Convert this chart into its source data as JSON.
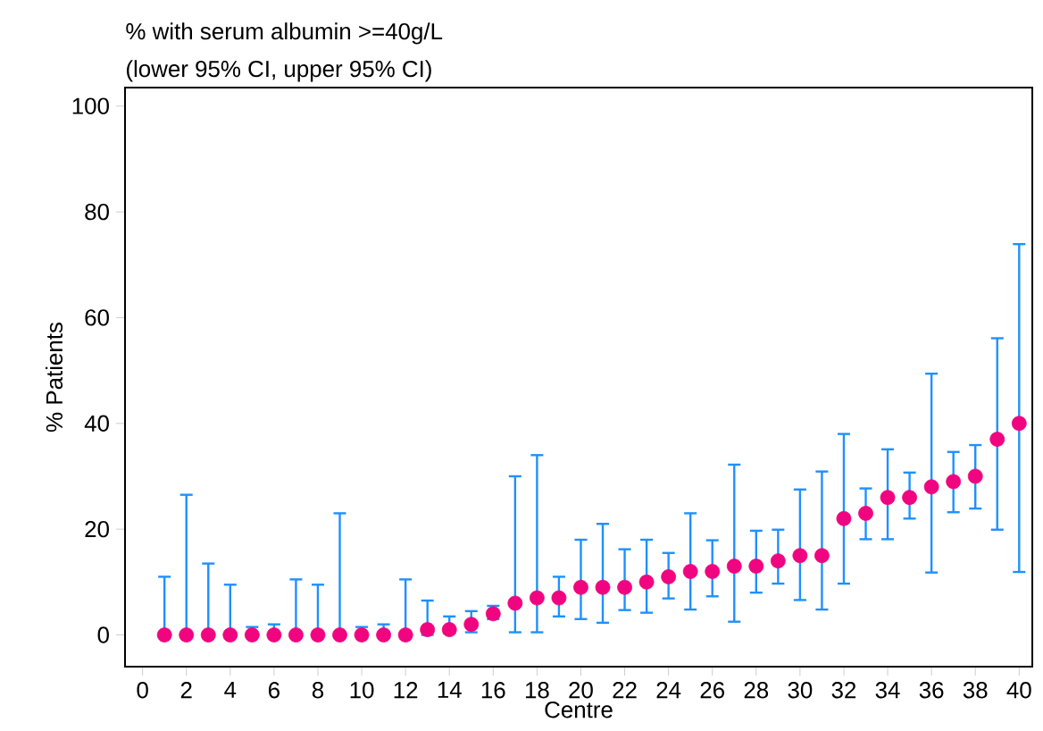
{
  "chart_data": {
    "type": "scatter",
    "title": "% with serum albumin >=40g/L",
    "subtitle": "(lower 95% CI, upper 95% CI)",
    "xlabel": "Centre",
    "ylabel": "% Patients",
    "x": [
      1,
      2,
      3,
      4,
      5,
      6,
      7,
      8,
      9,
      10,
      11,
      12,
      13,
      14,
      15,
      16,
      17,
      18,
      19,
      20,
      21,
      22,
      23,
      24,
      25,
      26,
      27,
      28,
      29,
      30,
      31,
      32,
      33,
      34,
      35,
      36,
      37,
      38,
      39,
      40
    ],
    "series": [
      {
        "color": "#f0047f",
        "values": [
          0,
          0,
          0,
          0,
          0,
          0,
          0,
          0,
          0,
          0,
          0,
          0,
          1,
          1,
          2,
          4,
          6,
          7,
          7,
          9,
          9,
          9,
          10,
          11,
          12,
          12,
          13,
          13,
          14,
          15,
          15,
          22,
          23,
          26,
          26,
          28,
          29,
          30,
          37,
          40
        ],
        "errors": [
          [
            0,
            11
          ],
          [
            0,
            26.5
          ],
          [
            0,
            13.5
          ],
          [
            0,
            9.5
          ],
          [
            0,
            1.5
          ],
          [
            0,
            2
          ],
          [
            0,
            10.5
          ],
          [
            0,
            9.5
          ],
          [
            0,
            23
          ],
          [
            0,
            1.5
          ],
          [
            0,
            2
          ],
          [
            0,
            10.5
          ],
          [
            0,
            6.5
          ],
          [
            0.3,
            3.5
          ],
          [
            0.5,
            4.5
          ],
          [
            3,
            5.5
          ],
          [
            0.5,
            30
          ],
          [
            0.5,
            34
          ],
          [
            3.5,
            11
          ],
          [
            3,
            18
          ],
          [
            2.3,
            21
          ],
          [
            4.7,
            16.2
          ],
          [
            4.2,
            18
          ],
          [
            6.9,
            15.5
          ],
          [
            4.8,
            23
          ],
          [
            7.3,
            17.9
          ],
          [
            2.5,
            32.2
          ],
          [
            8,
            19.7
          ],
          [
            9.7,
            19.9
          ],
          [
            6.6,
            27.5
          ],
          [
            4.8,
            30.9
          ],
          [
            9.7,
            38
          ],
          [
            18.1,
            27.7
          ],
          [
            18.1,
            35.1
          ],
          [
            22,
            30.7
          ],
          [
            11.8,
            49.4
          ],
          [
            23.2,
            34.6
          ],
          [
            23.9,
            35.9
          ],
          [
            19.9,
            56.1
          ],
          [
            11.9,
            73.9
          ]
        ]
      }
    ],
    "marker": "circle",
    "xlim": [
      -0.8,
      40.6
    ],
    "ylim": [
      -6,
      103.5
    ],
    "xticks": [
      0,
      2,
      4,
      6,
      8,
      10,
      12,
      14,
      16,
      18,
      20,
      22,
      24,
      26,
      28,
      30,
      32,
      34,
      36,
      38,
      40
    ],
    "yticks": [
      0,
      20,
      40,
      60,
      80,
      100
    ]
  }
}
